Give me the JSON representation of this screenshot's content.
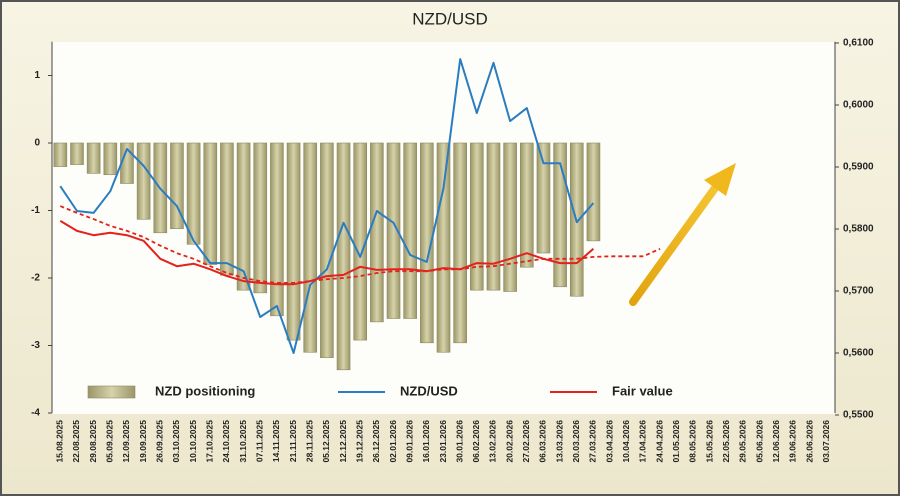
{
  "chart_data": {
    "type": "combo",
    "title": "NZD/USD",
    "categories": [
      "15.08.2025",
      "22.08.2025",
      "29.08.2025",
      "05.09.2025",
      "12.09.2025",
      "19.09.2025",
      "26.09.2025",
      "03.10.2025",
      "10.10.2025",
      "17.10.2025",
      "24.10.2025",
      "31.10.2025",
      "07.11.2025",
      "14.11.2025",
      "21.11.2025",
      "28.11.2025",
      "05.12.2025",
      "12.12.2025",
      "19.12.2025",
      "26.12.2025",
      "02.01.2026",
      "09.01.2026",
      "16.01.2026",
      "23.01.2026",
      "30.01.2026",
      "06.02.2026",
      "13.02.2026",
      "20.02.2026",
      "27.02.2026",
      "06.03.2026",
      "13.03.2026",
      "20.03.2026",
      "27.03.2026",
      "03.04.2026",
      "10.04.2026",
      "17.04.2026",
      "24.04.2026",
      "01.05.2026",
      "08.05.2026",
      "15.05.2026",
      "22.05.2026",
      "29.05.2026",
      "05.06.2026",
      "12.06.2026",
      "19.06.2026",
      "26.06.2026",
      "03.07.2026"
    ],
    "series": [
      {
        "name": "NZD positioning",
        "type": "bar",
        "color": "#c4bf90",
        "values": [
          -0.35,
          -0.32,
          -0.45,
          -0.47,
          -0.6,
          -1.13,
          -1.33,
          -1.27,
          -1.5,
          -1.8,
          -1.96,
          -2.18,
          -2.22,
          -2.56,
          -2.92,
          -3.1,
          -3.18,
          -3.36,
          -2.92,
          -2.65,
          -2.6,
          -2.6,
          -2.96,
          -3.1,
          -2.96,
          -2.18,
          -2.18,
          -2.2,
          -1.84,
          -1.63,
          -2.13,
          -2.27,
          -1.45,
          null,
          null,
          null,
          null,
          null,
          null,
          null,
          null,
          null,
          null,
          null,
          null,
          null,
          null
        ]
      },
      {
        "name": "NZD/USD",
        "type": "line",
        "axis": "y2",
        "color": "#2b7cc0",
        "values": [
          0.5869,
          0.5829,
          0.5826,
          0.5861,
          0.5929,
          0.5902,
          0.5865,
          0.5837,
          0.5781,
          0.5745,
          0.5745,
          0.5732,
          0.5658,
          0.5676,
          0.56,
          0.571,
          0.5735,
          0.581,
          0.5755,
          0.5829,
          0.581,
          0.5758,
          0.5747,
          0.5866,
          0.6074,
          0.5987,
          0.6068,
          0.5974,
          0.5995,
          0.5906,
          0.5906,
          0.5811,
          0.5842,
          null,
          null,
          null,
          null,
          null,
          null,
          null,
          null,
          null,
          null,
          null,
          null,
          null,
          null
        ]
      },
      {
        "name": "Fair value",
        "type": "line",
        "axis": "y2",
        "color": "#e3221b",
        "values": [
          0.5813,
          0.5797,
          0.579,
          0.5794,
          0.579,
          0.5781,
          0.5752,
          0.574,
          0.5744,
          0.5735,
          0.5724,
          0.5716,
          0.5713,
          0.5711,
          0.5711,
          0.5716,
          0.5724,
          0.5726,
          0.5739,
          0.5734,
          0.5735,
          0.5735,
          0.5732,
          0.5737,
          0.5735,
          0.5745,
          0.5744,
          0.5752,
          0.5761,
          0.5752,
          0.5745,
          0.5745,
          0.5768,
          null,
          null,
          null,
          null,
          null,
          null,
          null,
          null,
          null,
          null,
          null,
          null,
          null,
          null
        ]
      },
      {
        "type": "line",
        "axis": "y2",
        "color": "#e3221b",
        "dashed": true,
        "values": [
          0.5837,
          0.5826,
          0.5816,
          0.5805,
          0.5797,
          0.5787,
          0.5773,
          0.5761,
          0.5752,
          0.574,
          0.5729,
          0.5721,
          0.5716,
          0.5713,
          0.5713,
          0.5716,
          0.5719,
          0.5721,
          0.5724,
          0.5729,
          0.5732,
          0.5732,
          0.5732,
          0.5735,
          0.5735,
          0.5739,
          0.574,
          0.5744,
          0.5748,
          0.5752,
          0.5752,
          0.5752,
          0.5755,
          0.5756,
          0.5756,
          0.5756,
          0.5768,
          null,
          null,
          null,
          null,
          null,
          null,
          null,
          null,
          null,
          null
        ]
      }
    ],
    "ylim": [
      -4,
      1.5
    ],
    "yticks": [
      -4,
      -3,
      -2,
      -1,
      0,
      1
    ],
    "y2lim": [
      0.55,
      0.61
    ],
    "y2ticks": [
      {
        "value": 0.55,
        "label": "0,5500"
      },
      {
        "value": 0.56,
        "label": "0,5600"
      },
      {
        "value": 0.57,
        "label": "0,5700"
      },
      {
        "value": 0.58,
        "label": "0,5800"
      },
      {
        "value": 0.59,
        "label": "0,5900"
      },
      {
        "value": 0.6,
        "label": "0,6000"
      },
      {
        "value": 0.61,
        "label": "0,6100"
      }
    ],
    "grid": false,
    "legend": "bottom"
  }
}
